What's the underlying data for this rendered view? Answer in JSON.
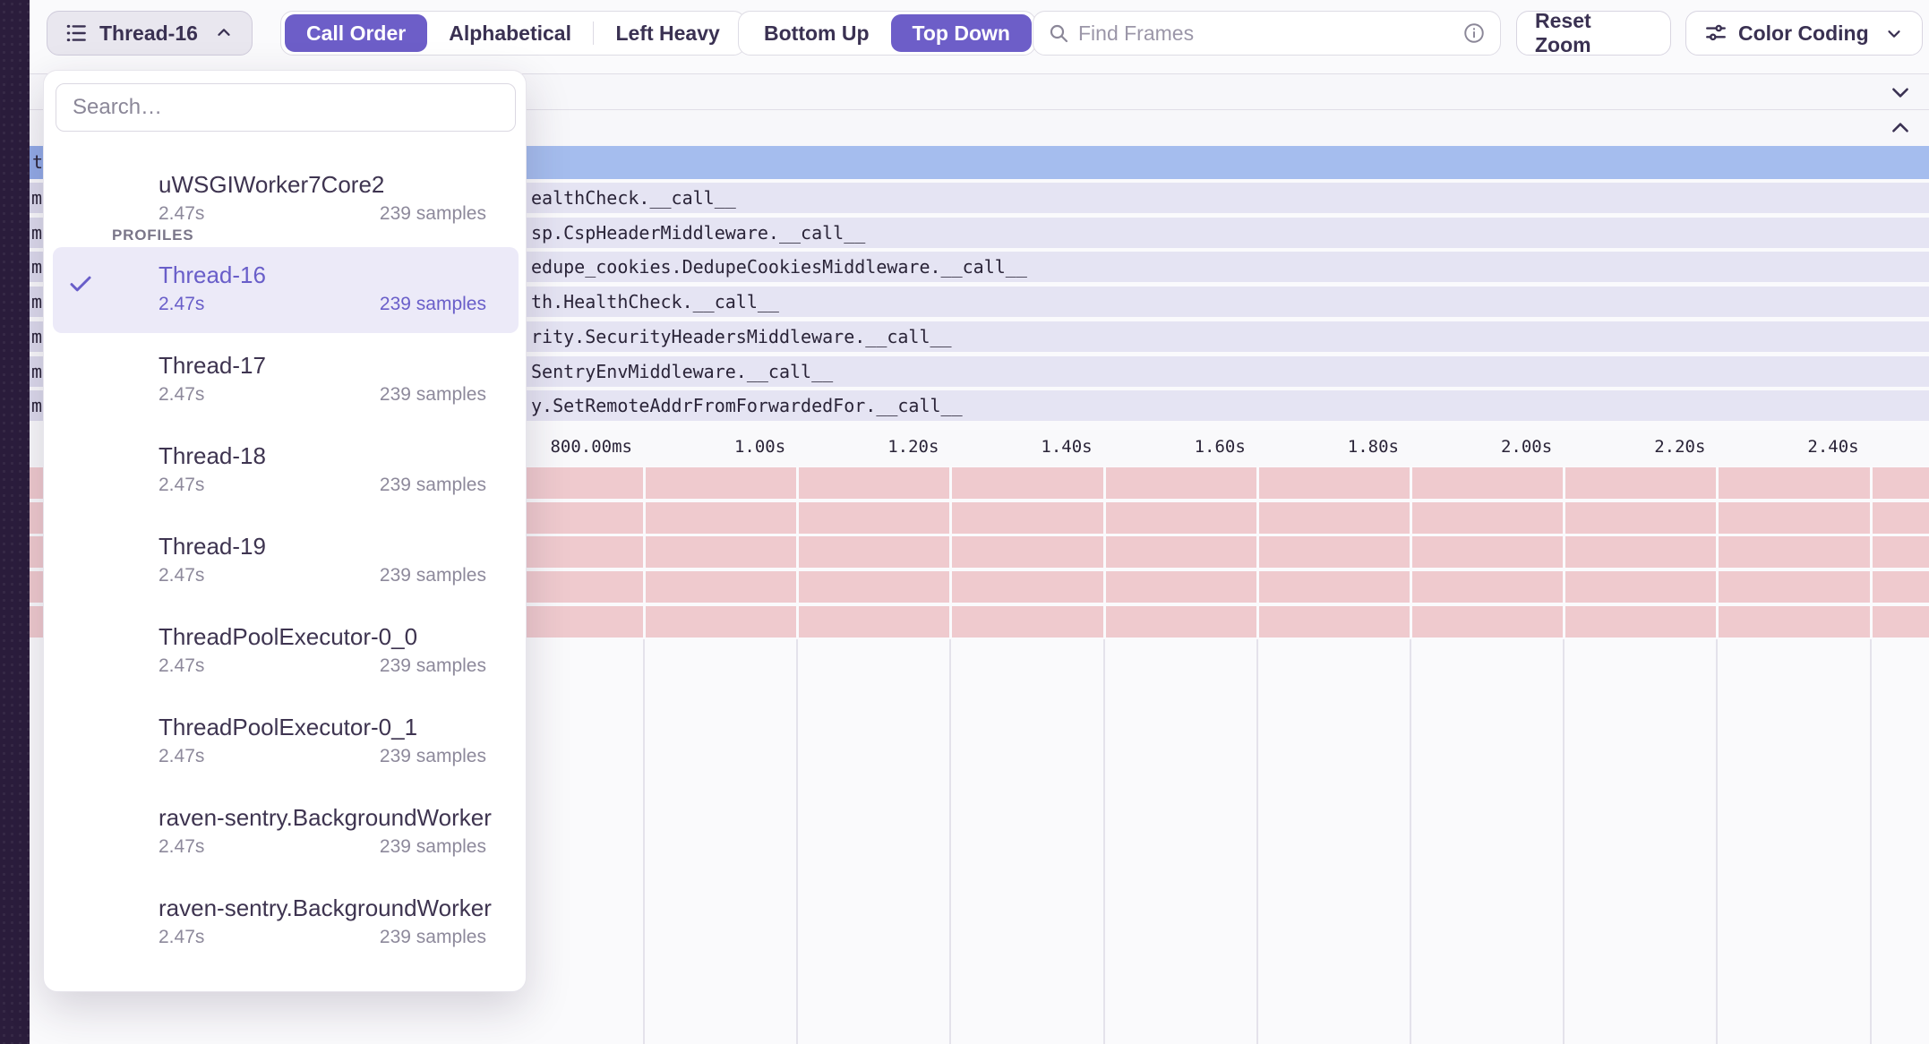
{
  "toolbar": {
    "thread_selector": {
      "label": "Thread-16"
    },
    "order_tabs": {
      "options": [
        "Call Order",
        "Alphabetical",
        "Left Heavy"
      ],
      "selected": "Call Order"
    },
    "direction_tabs": {
      "options": [
        "Bottom Up",
        "Top Down"
      ],
      "selected": "Top Down"
    },
    "find_frames": {
      "placeholder": "Find Frames"
    },
    "reset_zoom_label": "Reset Zoom",
    "color_coding_label": "Color Coding"
  },
  "dropdown": {
    "search_placeholder": "Search…",
    "section_label": "PROFILES",
    "items": [
      {
        "name": "uWSGIWorker7Core2",
        "duration": "2.47s",
        "samples": "239 samples",
        "selected": false
      },
      {
        "name": "Thread-16",
        "duration": "2.47s",
        "samples": "239 samples",
        "selected": true
      },
      {
        "name": "Thread-17",
        "duration": "2.47s",
        "samples": "239 samples",
        "selected": false
      },
      {
        "name": "Thread-18",
        "duration": "2.47s",
        "samples": "239 samples",
        "selected": false
      },
      {
        "name": "Thread-19",
        "duration": "2.47s",
        "samples": "239 samples",
        "selected": false
      },
      {
        "name": "ThreadPoolExecutor-0_0",
        "duration": "2.47s",
        "samples": "239 samples",
        "selected": false
      },
      {
        "name": "ThreadPoolExecutor-0_1",
        "duration": "2.47s",
        "samples": "239 samples",
        "selected": false
      },
      {
        "name": "raven-sentry.BackgroundWorker",
        "duration": "2.47s",
        "samples": "239 samples",
        "selected": false
      },
      {
        "name": "raven-sentry.BackgroundWorker",
        "duration": "2.47s",
        "samples": "239 samples",
        "selected": false
      }
    ]
  },
  "flamechart": {
    "selected_row_fragment": "t",
    "frame_rows": [
      {
        "left_fragment": "m",
        "label": "ealthCheck.__call__"
      },
      {
        "left_fragment": "m",
        "label": "sp.CspHeaderMiddleware.__call__"
      },
      {
        "left_fragment": "m",
        "label": "edupe_cookies.DedupeCookiesMiddleware.__call__"
      },
      {
        "left_fragment": "m",
        "label": "th.HealthCheck.__call__"
      },
      {
        "left_fragment": "m",
        "label": "rity.SecurityHeadersMiddleware.__call__"
      },
      {
        "left_fragment": "m",
        "label": "SentryEnvMiddleware.__call__"
      },
      {
        "left_fragment": "m",
        "label": "y.SetRemoteAddrFromForwardedFor.__call__"
      }
    ],
    "axis_ticks": [
      "800.00ms",
      "1.00s",
      "1.20s",
      "1.40s",
      "1.60s",
      "1.80s",
      "2.00s",
      "2.20s",
      "2.40s"
    ],
    "pink_rows": [
      {
        "left_fragment": "-"
      },
      {
        "left_fragment": "-"
      },
      {
        "left_fragment": "|"
      },
      {
        "left_fragment": "-"
      },
      {
        "left_fragment": "-"
      }
    ]
  },
  "colors": {
    "accent_purple": "#6d5ec8",
    "selected_row_blue": "#a5bdee",
    "frame_row_lavender": "#e5e4f3",
    "pink_row": "#efcace",
    "sidebar_dark": "#2b1d3c"
  }
}
